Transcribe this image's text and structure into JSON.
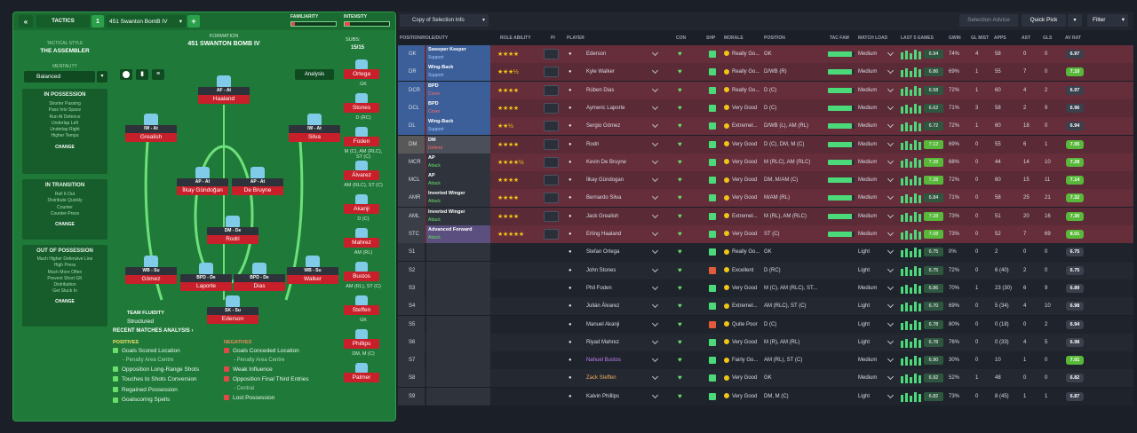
{
  "left": {
    "tab_label": "TACTICS",
    "tactic_num": "1",
    "tactic_name": "451 Swanton BomB IV",
    "familiarity_label": "FAMILIARITY",
    "intensity_label": "INTENSITY",
    "formation_label": "FORMATION",
    "formation_name": "451 SWANTON BOMB IV",
    "subs_label": "SUBS:",
    "subs_value": "15/15",
    "analysis_label": "Analysis",
    "style_label": "TACTICAL STYLE",
    "style_value": "THE ASSEMBLER",
    "mentality_label": "MENTALITY",
    "mentality_value": "Balanced",
    "in_possession": {
      "title": "IN POSSESSION",
      "items": [
        "Shorter Passing",
        "Pass Into Space",
        "Run At Defence",
        "Underlap Left",
        "Underlap Right",
        "Higher Tempo"
      ],
      "change": "CHANGE"
    },
    "in_transition": {
      "title": "IN TRANSITION",
      "items": [
        "Roll It Out",
        "Distribute Quickly",
        "Counter",
        "Counter-Press"
      ],
      "change": "CHANGE"
    },
    "out_possession": {
      "title": "OUT OF POSSESSION",
      "items": [
        "Much Higher Defensive Line",
        "High Press",
        "Much More Often",
        "Prevent Short GK",
        "Distribution",
        "Get Stuck In"
      ],
      "change": "CHANGE"
    },
    "players": [
      {
        "role": "AF - At",
        "name": "Haaland"
      },
      {
        "role": "IW - At",
        "name": "Grealish"
      },
      {
        "role": "IW - At",
        "name": "Silva"
      },
      {
        "role": "AP - At",
        "name": "İlkay Gündoğan"
      },
      {
        "role": "AP - At",
        "name": "De Bruyne"
      },
      {
        "role": "DM - De",
        "name": "Rodri"
      },
      {
        "role": "WB - Su",
        "name": "Gómez"
      },
      {
        "role": "BPD - De",
        "name": "Laporte"
      },
      {
        "role": "BPD - De",
        "name": "Dias"
      },
      {
        "role": "WB - Su",
        "name": "Walker"
      },
      {
        "role": "SK - Su",
        "name": "Ederson"
      }
    ],
    "fluidity_label": "TEAM FLUIDITY",
    "fluidity_value": "Structured",
    "bench": [
      {
        "name": "Ortega",
        "pos": "GK"
      },
      {
        "name": "Stones",
        "pos": "D (RC)"
      },
      {
        "name": "Foden",
        "pos": "M (C), AM (RLC), ST (C)"
      },
      {
        "name": "Álvarez",
        "pos": "AM (RLC), ST (C)"
      },
      {
        "name": "Akanji",
        "pos": "D (C)"
      },
      {
        "name": "Mahrez",
        "pos": "AM (RL)"
      },
      {
        "name": "Bustos",
        "pos": "AM (RL), ST (C)"
      },
      {
        "name": "Steffen",
        "pos": "GK"
      },
      {
        "name": "Phillips",
        "pos": "DM, M (C)"
      },
      {
        "name": "Palmer",
        "pos": ""
      }
    ],
    "recent_label": "RECENT MATCHES ANALYSIS",
    "positives_label": "POSITIVES",
    "negatives_label": "NEGATIVES",
    "positives": [
      "Goals Scored Location",
      "Opposition Long-Range Shots",
      "Touches to Shots Conversion",
      "Regained Possession",
      "Goalscoring Spells"
    ],
    "positives_sub": "- Penalty Area Centre",
    "negatives": [
      "Goals Conceded Location",
      "Weak Influence",
      "Opposition Final Third Entries",
      "Lost Possession"
    ],
    "negatives_sub1": "- Penalty Area Centre",
    "negatives_sub2": "- Central"
  },
  "right": {
    "view_label": "Copy of Selection Info",
    "selection_advice": "Selection Advice",
    "quick_pick": "Quick Pick",
    "filter": "Filter",
    "headers": {
      "pos": "POSITION/ROLE/DUTY",
      "ability": "ROLE ABILITY",
      "pi": "PI",
      "player": "PLAYER",
      "con": "CON",
      "shp": "SHP",
      "morale": "MORALE",
      "position": "POSITION",
      "tacfam": "TAC FAM",
      "load": "MATCH LOAD",
      "last5": "LAST 5 GAMES",
      "gwin": "GWIN",
      "glmist": "GL MIST",
      "apps": "APPS",
      "ast": "AST",
      "gls": "GLS",
      "avrat": "AV RAT"
    },
    "rows": [
      {
        "pos": "GK",
        "role": "Sweeper Keeper",
        "duty": "Support",
        "stars": 4,
        "player": "Ederson",
        "morale": "Really Go...",
        "position": "GK",
        "load": "Medium",
        "rating": "6.94",
        "gwin": "74%",
        "glmist": "4",
        "apps": "58",
        "ast": "0",
        "gls": "0",
        "av": "6.97"
      },
      {
        "pos": "DR",
        "role": "Wing-Back",
        "duty": "Support",
        "stars": 3.5,
        "player": "Kyle Walker",
        "morale": "Really Go...",
        "position": "D/WB (R)",
        "load": "Medium",
        "rating": "6.86",
        "gwin": "69%",
        "glmist": "1",
        "apps": "55",
        "ast": "7",
        "gls": "0",
        "av": "7.10"
      },
      {
        "pos": "DCR",
        "role": "BPD",
        "duty": "Cover",
        "stars": 4,
        "player": "Rúben Dias",
        "morale": "Really Go...",
        "position": "D (C)",
        "load": "Medium",
        "rating": "6.58",
        "gwin": "72%",
        "glmist": "1",
        "apps": "60",
        "ast": "4",
        "gls": "2",
        "av": "6.97"
      },
      {
        "pos": "DCL",
        "role": "BPD",
        "duty": "Cover",
        "stars": 4,
        "player": "Aymeric Laporte",
        "morale": "Very Good",
        "position": "D (C)",
        "load": "Medium",
        "rating": "6.62",
        "gwin": "71%",
        "glmist": "3",
        "apps": "58",
        "ast": "2",
        "gls": "9",
        "av": "6.96"
      },
      {
        "pos": "DL",
        "role": "Wing-Back",
        "duty": "Support",
        "stars": 2.5,
        "player": "Sergio Gómez",
        "morale": "Extremel...",
        "position": "D/WB (L), AM (RL)",
        "load": "Medium",
        "rating": "6.72",
        "gwin": "72%",
        "glmist": "1",
        "apps": "60",
        "ast": "18",
        "gls": "0",
        "av": "6.94"
      },
      {
        "pos": "DM",
        "role": "DM",
        "duty": "Defend",
        "stars": 4,
        "player": "Rodri",
        "morale": "Very Good",
        "position": "D (C), DM, M (C)",
        "load": "Medium",
        "rating": "7.12",
        "gwin": "69%",
        "glmist": "0",
        "apps": "55",
        "ast": "6",
        "gls": "1",
        "av": "7.05"
      },
      {
        "pos": "MCR",
        "role": "AP",
        "duty": "Attack",
        "stars": 4.5,
        "player": "Kevin De Bruyne",
        "morale": "Very Good",
        "position": "M (RLC), AM (RLC)",
        "load": "Medium",
        "rating": "7.28",
        "gwin": "68%",
        "glmist": "0",
        "apps": "44",
        "ast": "14",
        "gls": "10",
        "av": "7.28"
      },
      {
        "pos": "MCL",
        "role": "AP",
        "duty": "Attack",
        "stars": 4,
        "player": "İlkay Gündogan",
        "morale": "Very Good",
        "position": "DM, M/AM (C)",
        "load": "Medium",
        "rating": "7.28",
        "gwin": "72%",
        "glmist": "0",
        "apps": "60",
        "ast": "15",
        "gls": "11",
        "av": "7.14"
      },
      {
        "pos": "AMR",
        "role": "Inverted Winger",
        "duty": "Attack",
        "stars": 4,
        "player": "Bernardo Silva",
        "morale": "Very Good",
        "position": "M/AM (RL)",
        "load": "Medium",
        "rating": "6.84",
        "gwin": "71%",
        "glmist": "0",
        "apps": "58",
        "ast": "25",
        "gls": "21",
        "av": "7.32"
      },
      {
        "pos": "AML",
        "role": "Inverted Winger",
        "duty": "Attack",
        "stars": 4,
        "player": "Jack Grealish",
        "morale": "Extremel...",
        "position": "M (RL), AM (RLC)",
        "load": "Medium",
        "rating": "7.28",
        "gwin": "73%",
        "glmist": "0",
        "apps": "51",
        "ast": "20",
        "gls": "16",
        "av": "7.30"
      },
      {
        "pos": "STC",
        "role": "Advanced Forward",
        "duty": "Attack",
        "stars": 5,
        "player": "Erling Haaland",
        "morale": "Very Good",
        "position": "ST (C)",
        "load": "Medium",
        "rating": "7.08",
        "gwin": "73%",
        "glmist": "0",
        "apps": "52",
        "ast": "7",
        "gls": "69",
        "av": "8.01"
      },
      {
        "pos": "S1",
        "role": "",
        "duty": "",
        "stars": 0,
        "player": "Stefan Ortega",
        "morale": "Really Go...",
        "position": "GK",
        "load": "Light",
        "rating": "6.75",
        "gwin": "0%",
        "glmist": "0",
        "apps": "2",
        "ast": "0",
        "gls": "0",
        "av": "6.75"
      },
      {
        "pos": "S2",
        "role": "",
        "duty": "",
        "stars": 0,
        "player": "John Stones",
        "morale": "Excellent",
        "position": "D (RC)",
        "load": "Light",
        "rating": "6.75",
        "gwin": "72%",
        "glmist": "0",
        "apps": "6 (40)",
        "ast": "2",
        "gls": "0",
        "av": "6.75"
      },
      {
        "pos": "S3",
        "role": "",
        "duty": "",
        "stars": 0,
        "player": "Phil Foden",
        "morale": "Very Good",
        "position": "M (C), AM (RLC), ST...",
        "load": "Medium",
        "rating": "6.86",
        "gwin": "70%",
        "glmist": "1",
        "apps": "23 (30)",
        "ast": "6",
        "gls": "9",
        "av": "6.89"
      },
      {
        "pos": "S4",
        "role": "",
        "duty": "",
        "stars": 0,
        "player": "Julián Álvarez",
        "morale": "Extremel...",
        "position": "AM (RLC), ST (C)",
        "load": "Light",
        "rating": "6.70",
        "gwin": "69%",
        "glmist": "0",
        "apps": "5 (34)",
        "ast": "4",
        "gls": "10",
        "av": "6.98"
      },
      {
        "pos": "S5",
        "role": "",
        "duty": "",
        "stars": 0,
        "player": "Manuel Akanji",
        "morale": "Quite Poor",
        "position": "D (C)",
        "load": "Light",
        "rating": "6.78",
        "gwin": "80%",
        "glmist": "0",
        "apps": "0 (18)",
        "ast": "0",
        "gls": "2",
        "av": "6.94"
      },
      {
        "pos": "S6",
        "role": "",
        "duty": "",
        "stars": 0,
        "player": "Riyad Mahrez",
        "morale": "Very Good",
        "position": "M (R), AM (RL)",
        "load": "Light",
        "rating": "6.78",
        "gwin": "76%",
        "glmist": "0",
        "apps": "0 (33)",
        "ast": "4",
        "gls": "5",
        "av": "6.98"
      },
      {
        "pos": "S7",
        "role": "",
        "duty": "",
        "stars": 0,
        "player": "Nahuel Bustos",
        "morale": "Fairly Go...",
        "position": "AM (RL), ST (C)",
        "load": "Medium",
        "rating": "6.90",
        "gwin": "30%",
        "glmist": "0",
        "apps": "10",
        "ast": "1",
        "gls": "0",
        "av": "7.01"
      },
      {
        "pos": "S8",
        "role": "",
        "duty": "",
        "stars": 0,
        "player": "Zack Steffen",
        "morale": "Very Good",
        "position": "GK",
        "load": "Medium",
        "rating": "6.92",
        "gwin": "52%",
        "glmist": "1",
        "apps": "48",
        "ast": "0",
        "gls": "0",
        "av": "6.82"
      },
      {
        "pos": "S9",
        "role": "",
        "duty": "",
        "stars": 0,
        "player": "Kalvin Phillips",
        "morale": "Very Good",
        "position": "DM, M (C)",
        "load": "Light",
        "rating": "6.82",
        "gwin": "73%",
        "glmist": "0",
        "apps": "8 (45)",
        "ast": "1",
        "gls": "1",
        "av": "6.87"
      }
    ]
  }
}
